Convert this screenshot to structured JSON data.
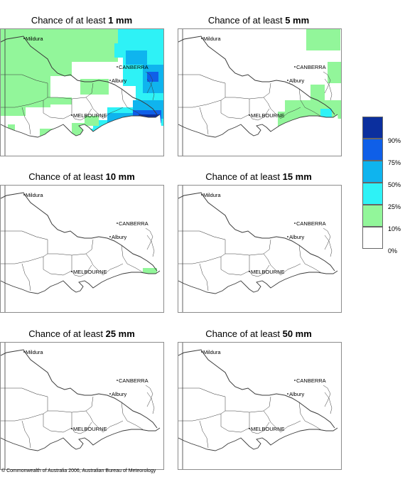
{
  "panels": [
    {
      "title_prefix": "Chance of at least ",
      "amount": "1 mm",
      "level": 1
    },
    {
      "title_prefix": "Chance of at least ",
      "amount": "5 mm",
      "level": 5
    },
    {
      "title_prefix": "Chance of at least ",
      "amount": "10 mm",
      "level": 10
    },
    {
      "title_prefix": "Chance of at least ",
      "amount": "15 mm",
      "level": 15
    },
    {
      "title_prefix": "Chance of at least ",
      "amount": "25 mm",
      "level": 25
    },
    {
      "title_prefix": "Chance of at least ",
      "amount": "50 mm",
      "level": 50
    }
  ],
  "places": {
    "mildura": "Mildura",
    "canberra": "CANBERRA",
    "albury": "Albury",
    "melbourne": "MELBOURNE"
  },
  "legend": {
    "labels": [
      "90%",
      "75%",
      "50%",
      "25%",
      "10%",
      "0%"
    ],
    "colors": [
      "#0b2f9e",
      "#0f5fe8",
      "#0fb4ee",
      "#2ef2f6",
      "#92f69a",
      "#ffffff"
    ]
  },
  "footer": "© Commonwealth of Australia 2006, Australian Bureau of Meteorology"
}
